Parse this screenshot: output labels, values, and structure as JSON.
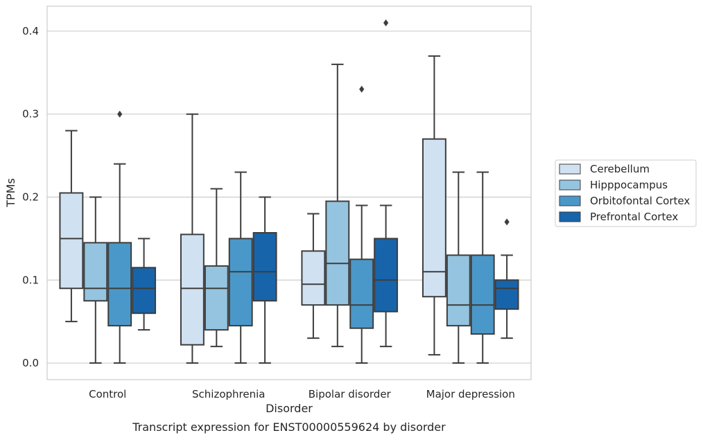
{
  "chart_data": {
    "type": "box",
    "xlabel": "Disorder",
    "ylabel": "TPMs",
    "caption": "Transcript expression for ENST00000559624 by disorder",
    "categories": [
      "Control",
      "Schizophrenia",
      "Bipolar disorder",
      "Major depression"
    ],
    "yticks": [
      "0.0",
      "0.1",
      "0.2",
      "0.3",
      "0.4"
    ],
    "ylim": [
      -0.02,
      0.43
    ],
    "grid": true,
    "legend_position": "right",
    "series": [
      {
        "name": "Cerebellum",
        "color": "#d0e1f2",
        "boxes": [
          {
            "whisker_low": 0.05,
            "q1": 0.09,
            "median": 0.15,
            "q3": 0.205,
            "whisker_high": 0.28,
            "outliers": []
          },
          {
            "whisker_low": 0.0,
            "q1": 0.022,
            "median": 0.09,
            "q3": 0.155,
            "whisker_high": 0.3,
            "outliers": []
          },
          {
            "whisker_low": 0.03,
            "q1": 0.07,
            "median": 0.095,
            "q3": 0.135,
            "whisker_high": 0.18,
            "outliers": []
          },
          {
            "whisker_low": 0.01,
            "q1": 0.08,
            "median": 0.11,
            "q3": 0.27,
            "whisker_high": 0.37,
            "outliers": []
          }
        ]
      },
      {
        "name": "Hipppocampus",
        "color": "#94c4df",
        "boxes": [
          {
            "whisker_low": 0.0,
            "q1": 0.075,
            "median": 0.09,
            "q3": 0.145,
            "whisker_high": 0.2,
            "outliers": []
          },
          {
            "whisker_low": 0.02,
            "q1": 0.04,
            "median": 0.09,
            "q3": 0.117,
            "whisker_high": 0.21,
            "outliers": []
          },
          {
            "whisker_low": 0.02,
            "q1": 0.07,
            "median": 0.12,
            "q3": 0.195,
            "whisker_high": 0.36,
            "outliers": []
          },
          {
            "whisker_low": 0.0,
            "q1": 0.045,
            "median": 0.07,
            "q3": 0.13,
            "whisker_high": 0.23,
            "outliers": []
          }
        ]
      },
      {
        "name": "Orbitofontal Cortex",
        "color": "#4a98c9",
        "boxes": [
          {
            "whisker_low": 0.0,
            "q1": 0.045,
            "median": 0.09,
            "q3": 0.145,
            "whisker_high": 0.24,
            "outliers": [
              0.3
            ]
          },
          {
            "whisker_low": 0.0,
            "q1": 0.045,
            "median": 0.11,
            "q3": 0.15,
            "whisker_high": 0.23,
            "outliers": []
          },
          {
            "whisker_low": 0.0,
            "q1": 0.042,
            "median": 0.07,
            "q3": 0.125,
            "whisker_high": 0.19,
            "outliers": [
              0.33
            ]
          },
          {
            "whisker_low": 0.0,
            "q1": 0.035,
            "median": 0.07,
            "q3": 0.13,
            "whisker_high": 0.23,
            "outliers": []
          }
        ]
      },
      {
        "name": "Prefrontal Cortex",
        "color": "#1764ab",
        "boxes": [
          {
            "whisker_low": 0.04,
            "q1": 0.06,
            "median": 0.09,
            "q3": 0.115,
            "whisker_high": 0.15,
            "outliers": []
          },
          {
            "whisker_low": 0.0,
            "q1": 0.075,
            "median": 0.11,
            "q3": 0.157,
            "whisker_high": 0.2,
            "outliers": []
          },
          {
            "whisker_low": 0.02,
            "q1": 0.062,
            "median": 0.1,
            "q3": 0.15,
            "whisker_high": 0.19,
            "outliers": [
              0.41
            ]
          },
          {
            "whisker_low": 0.03,
            "q1": 0.065,
            "median": 0.09,
            "q3": 0.1,
            "whisker_high": 0.13,
            "outliers": [
              0.17
            ]
          }
        ]
      }
    ]
  }
}
